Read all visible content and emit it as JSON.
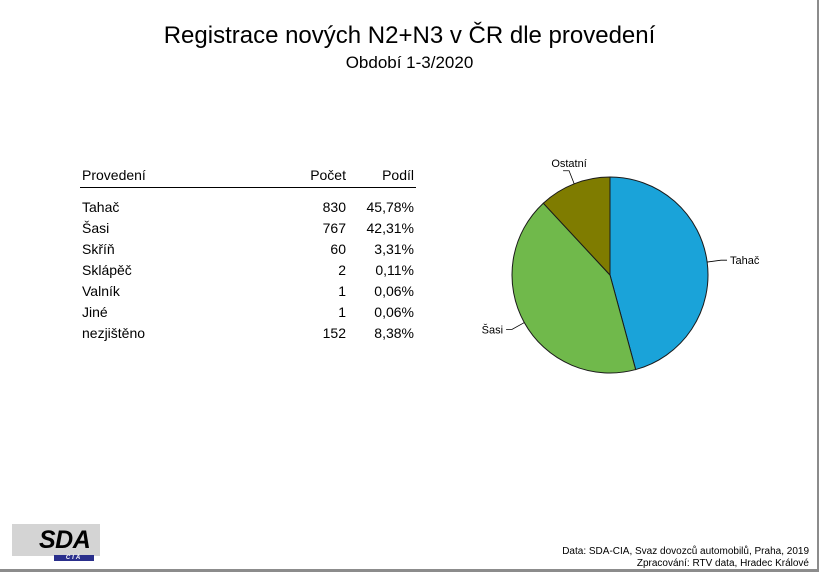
{
  "title": "Registrace nových N2+N3 v ČR dle provedení",
  "subtitle": "Období 1-3/2020",
  "table": {
    "headers": [
      "Provedení",
      "Počet",
      "Podíl"
    ],
    "rows": [
      {
        "label": "Tahač",
        "count": "830",
        "share": "45,78%"
      },
      {
        "label": "Šasi",
        "count": "767",
        "share": "42,31%"
      },
      {
        "label": "Skříň",
        "count": "60",
        "share": "3,31%"
      },
      {
        "label": "Sklápěč",
        "count": "2",
        "share": "0,11%"
      },
      {
        "label": "Valník",
        "count": "1",
        "share": "0,06%"
      },
      {
        "label": "Jiné",
        "count": "1",
        "share": "0,06%"
      },
      {
        "label": "nezjištěno",
        "count": "152",
        "share": "8,38%"
      }
    ]
  },
  "chart_data": {
    "type": "pie",
    "slices": [
      {
        "label": "Tahač",
        "value": 830,
        "color": "#1aa3d9"
      },
      {
        "label": "Šasi",
        "value": 767,
        "color": "#70b94b"
      },
      {
        "label": "Ostatní",
        "value": 216,
        "color": "#7f7c00"
      }
    ]
  },
  "logo": {
    "text": "SDA",
    "sub": "CIA"
  },
  "source": {
    "line1": "Data: SDA-CIA, Svaz dovozců automobilů, Praha, 2019",
    "line2": "Zpracování: RTV data, Hradec Králové"
  }
}
